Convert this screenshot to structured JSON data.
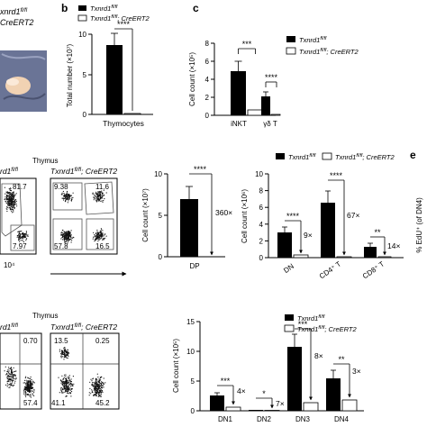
{
  "panel_letters": [
    "b",
    "c",
    "e"
  ],
  "fragments": {
    "top_left_genotype_1": "xnrd1",
    "top_left_genotype_1_sup": "fl/fl",
    "top_left_genotype_2": "CreERT2",
    "mid_left_genotype": "rd1",
    "mid_left_genotype_sup": "fl/fl",
    "bottom_left_genotype": "rd1",
    "bottom_left_genotype_sup": "fl/fl",
    "axis_tick_10_4": "10⁴",
    "right_edge_label": "% EdU⁺ (of DN4)"
  },
  "legend": {
    "ctrl": "Txnrd1",
    "ctrl_sup": "fl/fl",
    "cre": "Txnrd1",
    "cre_sup": "fl/fl",
    "cre_suffix": "; CreERT2"
  },
  "flow": [
    {
      "title": "Thymus",
      "genotype": "Txnrd1",
      "genotype_sup": "fl/fl",
      "genotype_suffix": "; CreERT2",
      "left_values": [
        "81.7",
        "7.97"
      ],
      "right_values": [
        "9.38",
        "11.6",
        "57.8",
        "16.5"
      ]
    },
    {
      "title": "Thymus",
      "genotype": "Txnrd1",
      "genotype_sup": "fl/fl",
      "genotype_suffix": "; CreERT2",
      "left_values": [
        "0.70",
        "57.4"
      ],
      "right_values": [
        "13.5",
        "0.25",
        "41.1",
        "45.2"
      ]
    }
  ],
  "chart_data": [
    {
      "type": "bar",
      "id": "b",
      "categories": [
        "Thymocytes"
      ],
      "series": [
        {
          "values": [
            8.8
          ],
          "errors": [
            1.5
          ]
        },
        {
          "values": [
            0.1
          ],
          "errors": [
            0.05
          ]
        }
      ],
      "ylabel": "Total number (×10⁷)",
      "ylim": [
        0,
        10
      ],
      "yticks": [
        "0",
        "5",
        "10"
      ],
      "annotations": [
        "****"
      ]
    },
    {
      "type": "bar",
      "id": "c",
      "categories": [
        "iNKT",
        "γδ T"
      ],
      "series": [
        {
          "values": [
            4.9,
            2.1
          ],
          "errors": [
            1.1,
            0.5
          ]
        },
        {
          "values": [
            0.6,
            0.1
          ],
          "errors": [
            0.1,
            0.03
          ]
        }
      ],
      "ylabel": "Cell count (×10⁵)",
      "ylim": [
        0,
        8
      ],
      "yticks": [
        "0",
        "2",
        "4",
        "6",
        "8"
      ],
      "annotations": [
        "***",
        "****"
      ]
    },
    {
      "type": "bar",
      "id": "dp",
      "categories": [
        "DP"
      ],
      "series": [
        {
          "values": [
            6.9
          ],
          "errors": [
            1.3
          ]
        },
        {
          "values": [
            0.02
          ],
          "errors": [
            0
          ]
        }
      ],
      "ylabel": "Cell count (×10⁷)",
      "ylim": [
        0,
        10
      ],
      "yticks": [
        "0",
        "5",
        "10"
      ],
      "annotations": [
        "****",
        "360×"
      ]
    },
    {
      "type": "bar",
      "id": "dn-cd4-cd8",
      "categories": [
        "DN",
        "CD4⁺ T",
        "CD8⁺ T"
      ],
      "series": [
        {
          "values": [
            3.0,
            6.6,
            1.3
          ],
          "errors": [
            0.6,
            1.4,
            0.4
          ]
        },
        {
          "values": [
            0.33,
            0.1,
            0.09
          ],
          "errors": [
            0.05,
            0.03,
            0.03
          ]
        }
      ],
      "ylabel": "Cell count (×10⁶)",
      "ylim": [
        0,
        10
      ],
      "yticks": [
        "0",
        "2",
        "4",
        "6",
        "8",
        "10"
      ],
      "annotations": [
        "****",
        "9×",
        "****",
        "67×",
        "**",
        "14×"
      ]
    },
    {
      "type": "bar",
      "id": "dn-subsets",
      "categories": [
        "DN1",
        "DN2",
        "DN3",
        "DN4"
      ],
      "series": [
        {
          "values": [
            2.5,
            0.2,
            10.7,
            5.5
          ],
          "errors": [
            0.4,
            0.05,
            2.1,
            1.3
          ]
        },
        {
          "values": [
            0.6,
            0.03,
            1.3,
            1.8
          ],
          "errors": [
            0.15,
            0.01,
            0.3,
            0.4
          ]
        }
      ],
      "ylabel": "Cell count (×10⁵)",
      "ylim": [
        0,
        15
      ],
      "yticks": [
        "0",
        "5",
        "10",
        "15"
      ],
      "annotations": [
        "***",
        "4×",
        "*",
        "7×",
        "***",
        "8×",
        "**",
        "3×"
      ]
    }
  ]
}
